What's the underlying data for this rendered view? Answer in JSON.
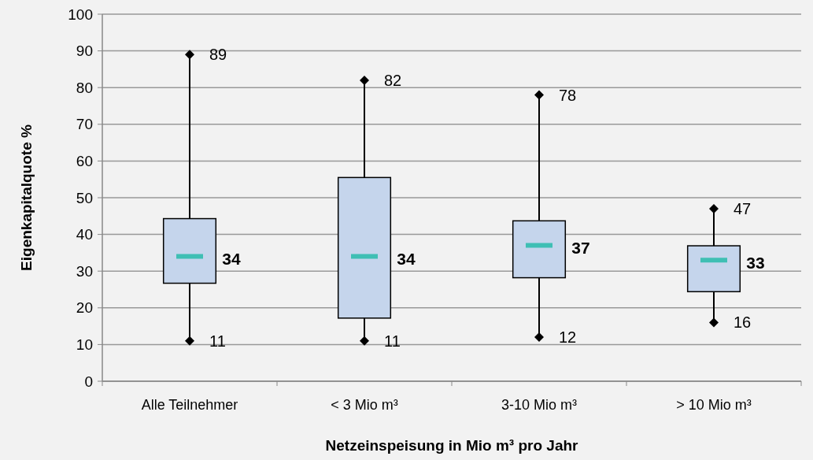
{
  "chart_data": {
    "type": "box",
    "xlabel": "Netzeinspeisung in Mio m³ pro Jahr",
    "ylabel": "Eigenkapitalquote %",
    "categories": [
      "Alle Teilnehmer",
      "< 3 Mio m³",
      "3-10 Mio m³",
      "> 10 Mio m³"
    ],
    "boxes": [
      {
        "low": 11,
        "q1": 26.7,
        "median": 34,
        "q3": 44.3,
        "high": 89
      },
      {
        "low": 11,
        "q1": 17.2,
        "median": 34,
        "q3": 55.5,
        "high": 82
      },
      {
        "low": 12,
        "q1": 28.2,
        "median": 37,
        "q3": 43.7,
        "high": 78
      },
      {
        "low": 16,
        "q1": 24.4,
        "median": 33,
        "q3": 36.9,
        "high": 47
      }
    ],
    "color": "#c5d5ec",
    "series": [
      {
        "type": "scatter",
        "color": "#000000",
        "marker": "diamond",
        "x": [
          "Alle Teilnehmer",
          "< 3 Mio m³",
          "3-10 Mio m³",
          "> 10 Mio m³"
        ],
        "values": [
          89,
          82,
          78,
          47
        ]
      },
      {
        "type": "scatter",
        "color": "#000000",
        "marker": "diamond",
        "x": [
          "Alle Teilnehmer",
          "< 3 Mio m³",
          "3-10 Mio m³",
          "> 10 Mio m³"
        ],
        "values": [
          11,
          11,
          12,
          16
        ]
      }
    ],
    "annotations": [
      {
        "text": "34",
        "x": "Alle Teilnehmer",
        "y": 34
      },
      {
        "text": "34",
        "x": "< 3 Mio m³",
        "y": 34
      },
      {
        "text": "37",
        "x": "3-10 Mio m³",
        "y": 37
      },
      {
        "text": "33",
        "x": "> 10 Mio m³",
        "y": 33
      }
    ],
    "data_labels": true,
    "ylim": [
      0,
      100
    ],
    "yticks": [
      0,
      10,
      20,
      30,
      40,
      50,
      60,
      70,
      80,
      90,
      100
    ],
    "grid": "y"
  }
}
